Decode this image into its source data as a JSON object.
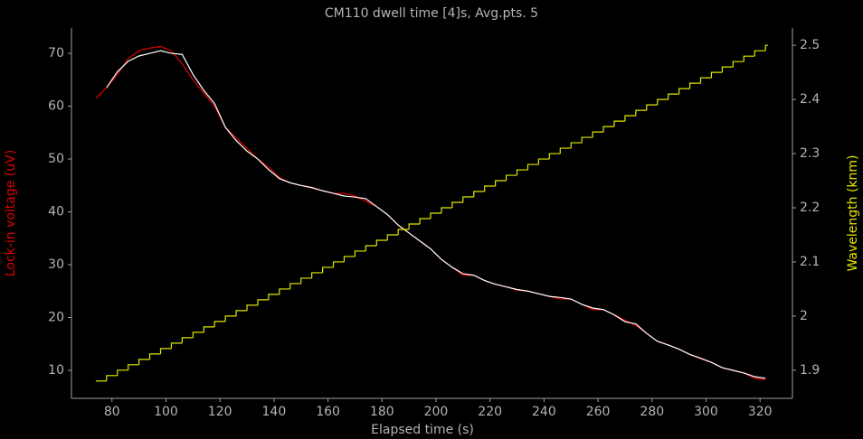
{
  "chart_data": {
    "type": "line",
    "title": "CM110 dwell time [4]s, Avg.pts. 5",
    "x_label": "Elapsed time (s)",
    "y_label": "Lock-in voltage (uV)",
    "y2_label": "Wavelength (knm)",
    "x": [
      74,
      78,
      82,
      86,
      90,
      94,
      98,
      102,
      106,
      110,
      114,
      118,
      122,
      126,
      130,
      134,
      138,
      142,
      146,
      150,
      154,
      158,
      162,
      166,
      170,
      174,
      178,
      182,
      186,
      190,
      194,
      198,
      202,
      206,
      210,
      214,
      218,
      222,
      226,
      230,
      234,
      238,
      242,
      246,
      250,
      254,
      258,
      262,
      266,
      270,
      274,
      278,
      282,
      286,
      290,
      294,
      298,
      302,
      306,
      310,
      314,
      318,
      322
    ],
    "series": [
      {
        "color": "#e00000",
        "values": [
          61.5,
          63.5,
          66,
          69,
          70.5,
          71,
          71.3,
          70.5,
          68,
          65,
          62.5,
          60,
          56,
          54,
          52,
          50,
          48.5,
          46.5,
          45.5,
          45,
          44.5,
          44,
          43.5,
          43.5,
          43,
          42,
          41,
          39.5,
          37.5,
          36,
          34.5,
          33,
          31,
          29.5,
          28,
          28,
          27,
          26.3,
          25.8,
          25.2,
          25,
          24.5,
          24,
          23.5,
          23.5,
          22.5,
          21.5,
          21.5,
          20.5,
          19.5,
          18.5,
          17,
          15.5,
          14.8,
          14,
          13,
          12.2,
          11.5,
          10.5,
          10,
          9.5,
          8.5,
          8.2
        ]
      },
      {
        "color": "#ffffff",
        "values": [
          null,
          63.5,
          66.5,
          68.5,
          69.5,
          70,
          70.5,
          70,
          69.8,
          66,
          63,
          60.5,
          56,
          53.5,
          51.5,
          50,
          48,
          46.3,
          45.5,
          45,
          44.6,
          44,
          43.5,
          43,
          42.8,
          42.5,
          41,
          39.5,
          37.5,
          36,
          34.5,
          33,
          31,
          29.5,
          28.3,
          28,
          27,
          26.3,
          25.8,
          25.3,
          25,
          24.5,
          24,
          23.8,
          23.5,
          22.5,
          21.8,
          21.5,
          20.5,
          19.2,
          18.8,
          17,
          15.5,
          14.8,
          14,
          13,
          12.3,
          11.5,
          10.5,
          10,
          9.5,
          8.8,
          8.5
        ]
      },
      {
        "color": "#e6e600",
        "axis": "y2",
        "step": true,
        "values": [
          1.88,
          1.89,
          1.9,
          1.91,
          1.92,
          1.93,
          1.94,
          1.95,
          1.96,
          1.97,
          1.98,
          1.99,
          2.0,
          2.01,
          2.02,
          2.03,
          2.04,
          2.05,
          2.06,
          2.07,
          2.08,
          2.09,
          2.1,
          2.11,
          2.12,
          2.13,
          2.14,
          2.15,
          2.16,
          2.17,
          2.18,
          2.19,
          2.2,
          2.21,
          2.22,
          2.23,
          2.24,
          2.25,
          2.26,
          2.27,
          2.28,
          2.29,
          2.3,
          2.31,
          2.32,
          2.33,
          2.34,
          2.35,
          2.36,
          2.37,
          2.38,
          2.39,
          2.4,
          2.41,
          2.42,
          2.43,
          2.44,
          2.45,
          2.46,
          2.47,
          2.48,
          2.49,
          2.5
        ]
      }
    ],
    "xlim": [
      65,
      332
    ],
    "xticks": [
      80,
      100,
      120,
      140,
      160,
      180,
      200,
      220,
      240,
      260,
      280,
      300,
      320
    ],
    "ylim": [
      4.7,
      74.8
    ],
    "yticks": [
      10,
      20,
      30,
      40,
      50,
      60,
      70
    ],
    "y2lim": [
      1.848,
      2.532
    ],
    "y2ticks": [
      {
        "value": 1.9,
        "label": "1.9"
      },
      2,
      2.1,
      2.2,
      2.3,
      2.4,
      2.5
    ],
    "y_label_color": "#e00000",
    "y2_label_color": "#e6e600"
  }
}
